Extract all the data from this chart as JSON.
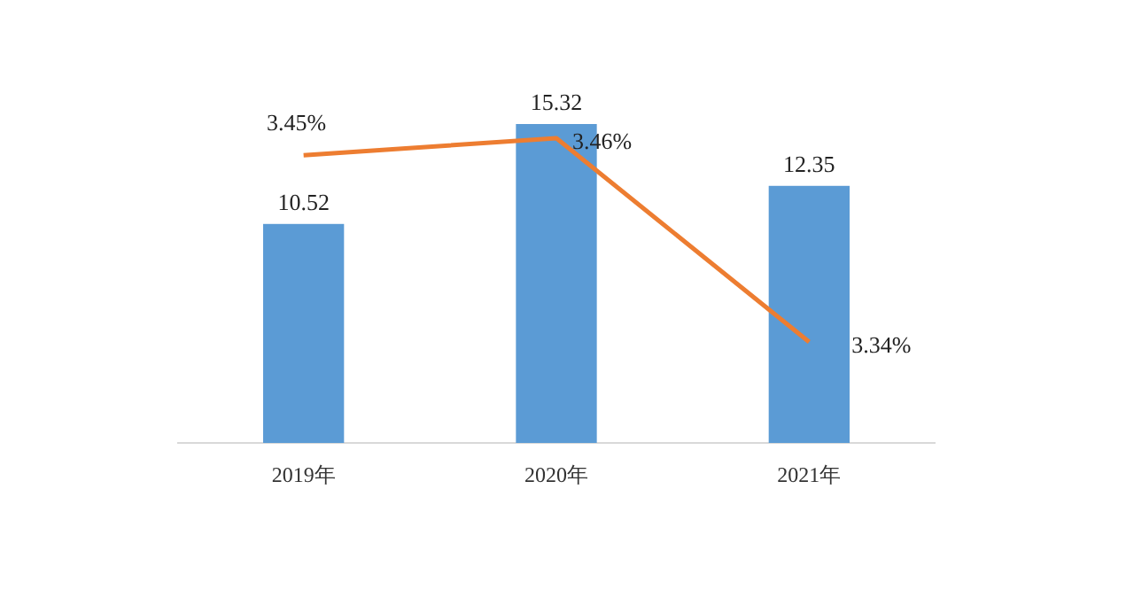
{
  "chart_data": {
    "type": "bar",
    "categories": [
      "2019年",
      "2020年",
      "2021年"
    ],
    "tick_labels": "x",
    "data_labels": true,
    "series": [
      {
        "color": "#5b9bd5",
        "values": [
          10.52,
          15.32,
          12.35
        ]
      },
      {
        "type": "line",
        "axis": "y2",
        "color": "#ed7d31",
        "values": [
          3.45,
          3.46,
          3.34
        ],
        "value_labels": [
          "3.45%",
          "3.46%",
          "3.34%"
        ]
      }
    ]
  }
}
